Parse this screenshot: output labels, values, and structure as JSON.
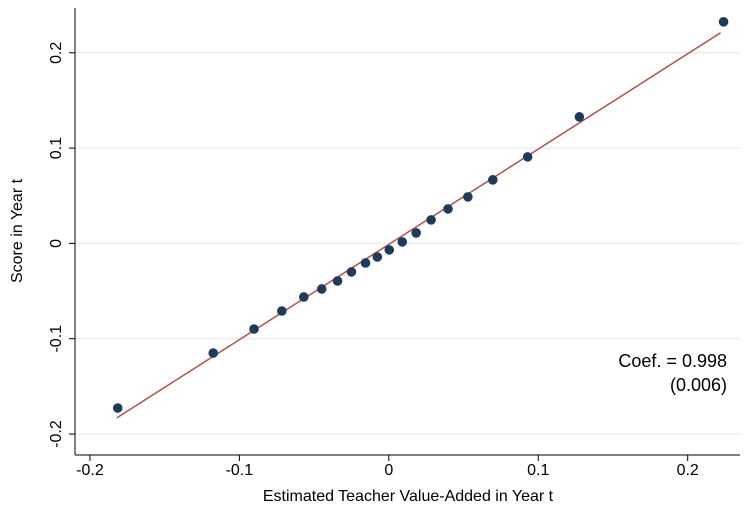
{
  "chart_data": {
    "type": "scatter",
    "x_label": "Estimated Teacher Value-Added in Year t",
    "y_label": "Score in Year t",
    "annotations": [
      "Coef. = 0.998",
      "(0.006)"
    ],
    "x": [
      -0.1814,
      -0.1175,
      -0.0902,
      -0.0716,
      -0.0569,
      -0.0449,
      -0.0343,
      -0.025,
      -0.0156,
      -0.0077,
      0.0003,
      0.009,
      0.0183,
      0.0283,
      0.0396,
      0.0529,
      0.0696,
      0.0929,
      0.1275,
      0.224
    ],
    "values": [
      -0.1727,
      -0.115,
      -0.0898,
      -0.0709,
      -0.0562,
      -0.0478,
      -0.0394,
      -0.0299,
      -0.0205,
      -0.0142,
      -0.0068,
      0.0016,
      0.011,
      0.0247,
      0.0362,
      0.0488,
      0.0667,
      0.0908,
      0.1328,
      0.2325
    ],
    "color": "#1f3b5c",
    "fit_line": {
      "x": [
        -0.182,
        0.222
      ],
      "y": [
        -0.183,
        0.221
      ],
      "color": "#b0504a"
    },
    "xlim": [
      -0.21,
      0.235
    ],
    "ylim": [
      -0.222,
      0.247
    ],
    "xticks": [
      -0.2,
      -0.1,
      0,
      0.1,
      0.2
    ],
    "yticks": [
      -0.2,
      -0.1,
      0,
      0.1,
      0.2
    ],
    "grid": true
  }
}
